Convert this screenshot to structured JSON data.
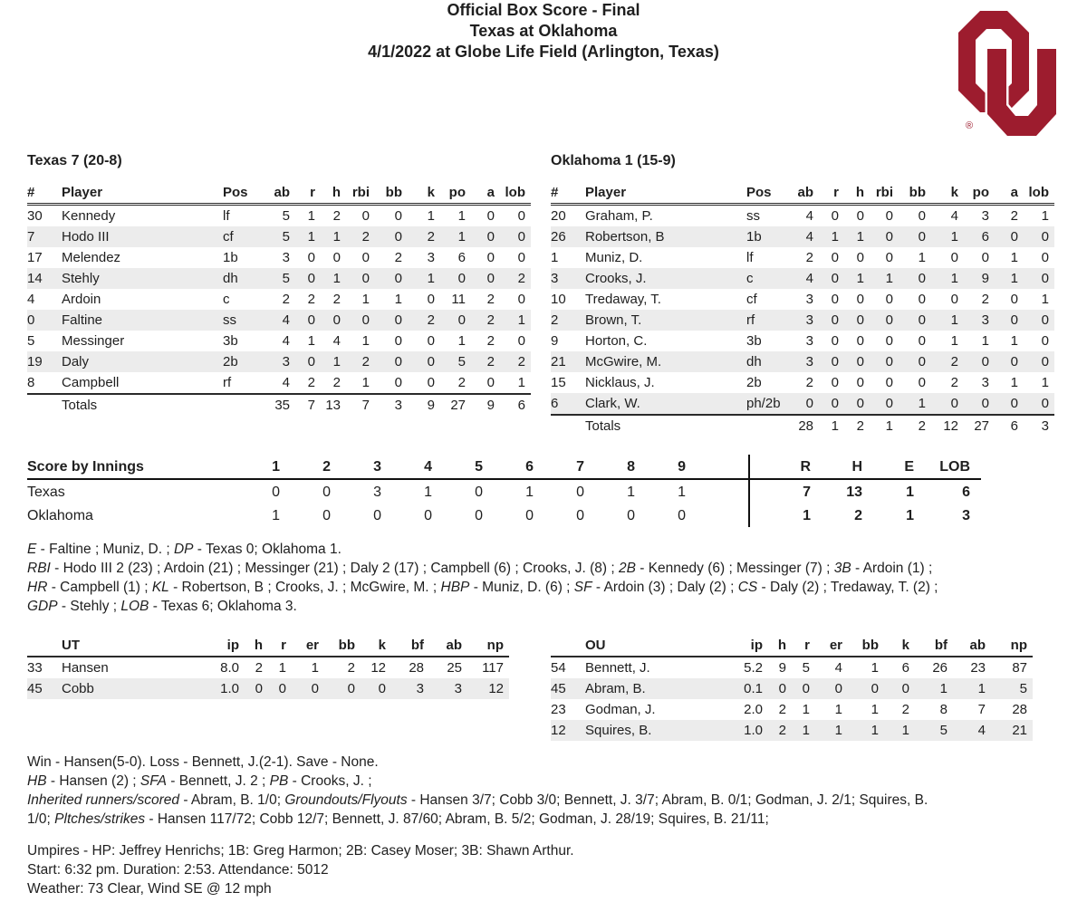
{
  "header": {
    "line1": "Official Box Score - Final",
    "line2": "Texas at Oklahoma",
    "line3": "4/1/2022 at Globe Life Field (Arlington, Texas)"
  },
  "logo": {
    "label": "OU",
    "color": "#9d1c2e",
    "registered": "®"
  },
  "colors": {
    "crimson": "#9d1c2e",
    "row_stripe": "#ececec"
  },
  "batting_header": [
    [
      "#",
      "Player",
      "Pos",
      "ab",
      "r",
      "h",
      "rbi",
      "bb",
      "k",
      "po",
      "a",
      "lob"
    ]
  ],
  "texas": {
    "team_label": "Texas 7 (20-8)",
    "players": [
      [
        "30",
        "Kennedy",
        "lf",
        "5",
        "1",
        "2",
        "0",
        "0",
        "1",
        "1",
        "0",
        "0"
      ],
      [
        "7",
        "Hodo III",
        "cf",
        "5",
        "1",
        "1",
        "2",
        "0",
        "2",
        "1",
        "0",
        "0"
      ],
      [
        "17",
        "Melendez",
        "1b",
        "3",
        "0",
        "0",
        "0",
        "2",
        "3",
        "6",
        "0",
        "0"
      ],
      [
        "14",
        "Stehly",
        "dh",
        "5",
        "0",
        "1",
        "0",
        "0",
        "1",
        "0",
        "0",
        "2"
      ],
      [
        "4",
        "Ardoin",
        "c",
        "2",
        "2",
        "2",
        "1",
        "1",
        "0",
        "11",
        "2",
        "0"
      ],
      [
        "0",
        "Faltine",
        "ss",
        "4",
        "0",
        "0",
        "0",
        "0",
        "2",
        "0",
        "2",
        "1"
      ],
      [
        "5",
        "Messinger",
        "3b",
        "4",
        "1",
        "4",
        "1",
        "0",
        "0",
        "1",
        "2",
        "0"
      ],
      [
        "19",
        "Daly",
        "2b",
        "3",
        "0",
        "1",
        "2",
        "0",
        "0",
        "5",
        "2",
        "2"
      ],
      [
        "8",
        "Campbell",
        "rf",
        "4",
        "2",
        "2",
        "1",
        "0",
        "0",
        "2",
        "0",
        "1"
      ]
    ],
    "totals": [
      [
        "",
        "Totals",
        "",
        "35",
        "7",
        "13",
        "7",
        "3",
        "9",
        "27",
        "9",
        "6"
      ]
    ]
  },
  "oklahoma": {
    "team_label": "Oklahoma 1 (15-9)",
    "players": [
      [
        "20",
        "Graham, P.",
        "ss",
        "4",
        "0",
        "0",
        "0",
        "0",
        "4",
        "3",
        "2",
        "1"
      ],
      [
        "26",
        "Robertson, B",
        "1b",
        "4",
        "1",
        "1",
        "0",
        "0",
        "1",
        "6",
        "0",
        "0"
      ],
      [
        "1",
        "Muniz, D.",
        "lf",
        "2",
        "0",
        "0",
        "0",
        "1",
        "0",
        "0",
        "1",
        "0"
      ],
      [
        "3",
        "Crooks, J.",
        "c",
        "4",
        "0",
        "1",
        "1",
        "0",
        "1",
        "9",
        "1",
        "0"
      ],
      [
        "10",
        "Tredaway, T.",
        "cf",
        "3",
        "0",
        "0",
        "0",
        "0",
        "0",
        "2",
        "0",
        "1"
      ],
      [
        "2",
        "Brown, T.",
        "rf",
        "3",
        "0",
        "0",
        "0",
        "0",
        "1",
        "3",
        "0",
        "0"
      ],
      [
        "9",
        "Horton, C.",
        "3b",
        "3",
        "0",
        "0",
        "0",
        "0",
        "1",
        "1",
        "1",
        "0"
      ],
      [
        "21",
        "McGwire, M.",
        "dh",
        "3",
        "0",
        "0",
        "0",
        "0",
        "2",
        "0",
        "0",
        "0"
      ],
      [
        "15",
        "Nicklaus, J.",
        "2b",
        "2",
        "0",
        "0",
        "0",
        "0",
        "2",
        "3",
        "1",
        "1"
      ],
      [
        "6",
        "Clark, W.",
        "ph/2b",
        "0",
        "0",
        "0",
        "0",
        "1",
        "0",
        "0",
        "0",
        "0"
      ]
    ],
    "totals": [
      [
        "",
        "Totals",
        "",
        "28",
        "1",
        "2",
        "1",
        "2",
        "12",
        "27",
        "6",
        "3"
      ]
    ]
  },
  "innings": {
    "header": [
      [
        "Score by Innings",
        "1",
        "2",
        "3",
        "4",
        "5",
        "6",
        "7",
        "8",
        "9",
        "",
        "R",
        "H",
        "E",
        "LOB"
      ]
    ],
    "rows": [
      [
        "Texas",
        "0",
        "0",
        "3",
        "1",
        "0",
        "1",
        "0",
        "1",
        "1",
        "",
        "7",
        "13",
        "1",
        "6"
      ],
      [
        "Oklahoma",
        "1",
        "0",
        "0",
        "0",
        "0",
        "0",
        "0",
        "0",
        "0",
        "",
        "1",
        "2",
        "1",
        "3"
      ]
    ]
  },
  "game_notes": {
    "para1": [
      [
        {
          "t": "E",
          "i": true
        },
        {
          "t": " - Faltine ; Muniz, D. ; "
        },
        {
          "t": "DP",
          "i": true
        },
        {
          "t": " - Texas 0; Oklahoma 1."
        }
      ]
    ],
    "para2": [
      [
        {
          "t": "RBI",
          "i": true
        },
        {
          "t": " - Hodo III 2 (23) ; Ardoin (21) ; Messinger (21) ; Daly 2 (17) ; Campbell (6) ; Crooks, J. (8) ; "
        },
        {
          "t": "2B",
          "i": true
        },
        {
          "t": " - Kennedy (6) ; Messinger (7) ; "
        },
        {
          "t": "3B",
          "i": true
        },
        {
          "t": " - Ardoin (1) ;"
        }
      ],
      [
        {
          "t": "HR",
          "i": true
        },
        {
          "t": " - Campbell (1) ; "
        },
        {
          "t": "KL",
          "i": true
        },
        {
          "t": " - Robertson, B ; Crooks, J. ; McGwire, M. ; "
        },
        {
          "t": "HBP",
          "i": true
        },
        {
          "t": " - Muniz, D. (6) ; "
        },
        {
          "t": "SF",
          "i": true
        },
        {
          "t": " - Ardoin (3) ; Daly (2) ; "
        },
        {
          "t": "CS",
          "i": true
        },
        {
          "t": " - Daly (2) ; Tredaway, T. (2) ;"
        }
      ],
      [
        {
          "t": "GDP",
          "i": true
        },
        {
          "t": " - Stehly ; "
        },
        {
          "t": "LOB",
          "i": true
        },
        {
          "t": " - Texas 6; Oklahoma 3."
        }
      ]
    ]
  },
  "ut_pitching": {
    "header": [
      [
        "",
        "UT",
        "ip",
        "h",
        "r",
        "er",
        "bb",
        "k",
        "bf",
        "ab",
        "np"
      ]
    ],
    "rows": [
      [
        "33",
        "Hansen",
        "8.0",
        "2",
        "1",
        "1",
        "2",
        "12",
        "28",
        "25",
        "117"
      ],
      [
        "45",
        "Cobb",
        "1.0",
        "0",
        "0",
        "0",
        "0",
        "0",
        "3",
        "3",
        "12"
      ]
    ]
  },
  "ou_pitching": {
    "header": [
      [
        "",
        "OU",
        "ip",
        "h",
        "r",
        "er",
        "bb",
        "k",
        "bf",
        "ab",
        "np"
      ]
    ],
    "rows": [
      [
        "54",
        "Bennett, J.",
        "5.2",
        "9",
        "5",
        "4",
        "1",
        "6",
        "26",
        "23",
        "87"
      ],
      [
        "45",
        "Abram, B.",
        "0.1",
        "0",
        "0",
        "0",
        "0",
        "0",
        "1",
        "1",
        "5"
      ],
      [
        "23",
        "Godman, J.",
        "2.0",
        "2",
        "1",
        "1",
        "1",
        "2",
        "8",
        "7",
        "28"
      ],
      [
        "12",
        "Squires, B.",
        "1.0",
        "2",
        "1",
        "1",
        "1",
        "1",
        "5",
        "4",
        "21"
      ]
    ]
  },
  "pitching_notes": {
    "result_line": "Win - Hansen(5-0). Loss - Bennett, J.(2-1). Save - None.",
    "detail_lines": [
      [
        {
          "t": "HB",
          "i": true
        },
        {
          "t": " - Hansen (2) ; "
        },
        {
          "t": "SFA",
          "i": true
        },
        {
          "t": " - Bennett, J. 2 ; "
        },
        {
          "t": "PB",
          "i": true
        },
        {
          "t": " - Crooks, J. ;"
        }
      ],
      [
        {
          "t": "Inherited runners/scored",
          "i": true
        },
        {
          "t": " - Abram, B. 1/0; "
        },
        {
          "t": "Groundouts/Flyouts",
          "i": true
        },
        {
          "t": " - Hansen 3/7; Cobb 3/0; Bennett, J. 3/7; Abram, B. 0/1; Godman, J. 2/1; Squires, B."
        }
      ],
      [
        {
          "t": "1/0; "
        },
        {
          "t": "Pltches/strikes",
          "i": true
        },
        {
          "t": " - Hansen 117/72; Cobb 12/7; Bennett, J. 87/60; Abram, B. 5/2; Godman, J. 28/19; Squires, B. 21/11;"
        }
      ]
    ]
  },
  "footer": {
    "umpires": "Umpires - HP: Jeffrey Henrichs; 1B: Greg Harmon; 2B: Casey Moser; 3B: Shawn Arthur.",
    "start": "Start: 6:32 pm. Duration: 2:53. Attendance: 5012",
    "weather": "Weather: 73 Clear, Wind SE @ 12 mph"
  }
}
